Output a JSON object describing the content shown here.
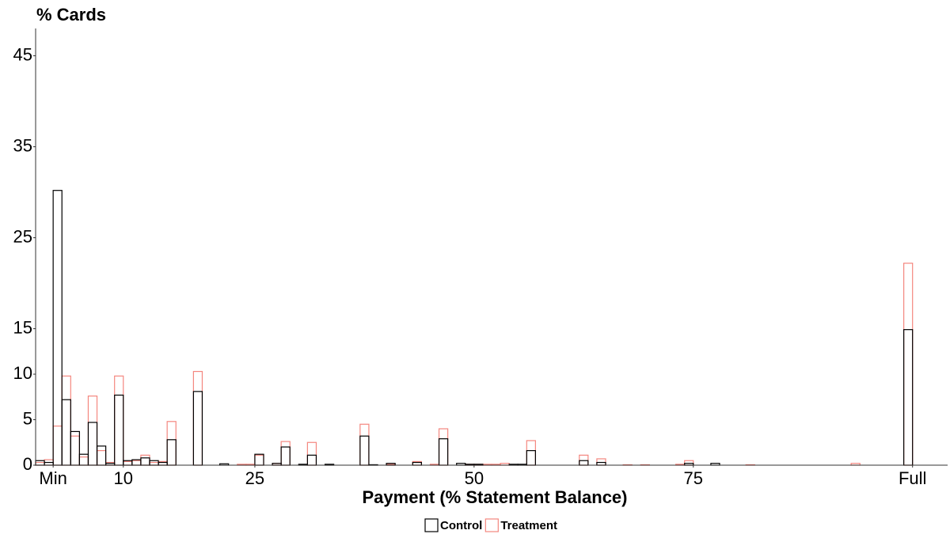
{
  "chart_data": {
    "type": "histogram",
    "y_label": "% Cards",
    "x_label": "Payment (% Statement Balance)",
    "bins": [
      0,
      1,
      2,
      3,
      4,
      5,
      6,
      7,
      8,
      9,
      10,
      11,
      12,
      13,
      14,
      15,
      16,
      17,
      18,
      19,
      20,
      21,
      22,
      23,
      24,
      25,
      26,
      27,
      28,
      29,
      30,
      31,
      32,
      33,
      34,
      35,
      36,
      37,
      38,
      39,
      40,
      41,
      42,
      43,
      44,
      45,
      46,
      47,
      48,
      49,
      50,
      51,
      52,
      53,
      54,
      55,
      56,
      57,
      58,
      59,
      60,
      61,
      62,
      63,
      64,
      65,
      66,
      67,
      68,
      69,
      70,
      71,
      72,
      73,
      74,
      75,
      76,
      77,
      78,
      79,
      80,
      81,
      82,
      83,
      84,
      85,
      86,
      87,
      88,
      89,
      90,
      91,
      92,
      93,
      94,
      95,
      96,
      97,
      98,
      99,
      100
    ],
    "series": [
      {
        "name": "Treatment",
        "color": "#f4877f",
        "values": [
          0.3,
          0.6,
          4.3,
          9.8,
          3.2,
          0.9,
          7.6,
          1.6,
          0.3,
          9.8,
          0.4,
          0.5,
          1.1,
          0.3,
          0.4,
          4.8,
          0,
          0,
          10.3,
          0,
          0,
          0,
          0,
          0.1,
          0.1,
          1.1,
          0,
          0.2,
          2.6,
          0,
          0,
          2.5,
          0,
          0,
          0,
          0,
          0,
          4.5,
          0,
          0,
          0.1,
          0,
          0,
          0.4,
          0,
          0.1,
          4.0,
          0,
          0,
          0.1,
          0.1,
          0.1,
          0.1,
          0.2,
          0,
          0,
          2.7,
          0,
          0,
          0,
          0,
          0,
          1.1,
          0,
          0.7,
          0,
          0,
          0.05,
          0,
          0.05,
          0,
          0,
          0,
          0.1,
          0.5,
          0,
          0,
          0,
          0,
          0,
          0,
          0.05,
          0,
          0,
          0,
          0,
          0,
          0,
          0,
          0,
          0,
          0,
          0,
          0.2,
          0,
          0,
          0,
          0,
          0,
          22.2
        ]
      },
      {
        "name": "Control",
        "color": "#000000",
        "values": [
          0.5,
          0.3,
          30.2,
          7.2,
          3.7,
          1.2,
          4.7,
          2.1,
          0.2,
          7.7,
          0.5,
          0.6,
          0.8,
          0.5,
          0.3,
          2.8,
          0,
          0,
          8.1,
          0,
          0,
          0.15,
          0,
          0,
          0,
          1.2,
          0,
          0.2,
          2.0,
          0,
          0.1,
          1.1,
          0,
          0.1,
          0,
          0,
          0,
          3.2,
          0.05,
          0,
          0.2,
          0,
          0,
          0.3,
          0,
          0,
          2.9,
          0,
          0.2,
          0.1,
          0.1,
          0,
          0,
          0,
          0.1,
          0.1,
          1.6,
          0,
          0,
          0,
          0,
          0,
          0.5,
          0,
          0.3,
          0,
          0,
          0,
          0,
          0,
          0,
          0,
          0,
          0,
          0.2,
          0,
          0,
          0.2,
          0,
          0,
          0,
          0,
          0,
          0,
          0,
          0,
          0,
          0,
          0,
          0,
          0,
          0,
          0,
          0,
          0,
          0,
          0,
          0,
          0,
          14.9
        ]
      }
    ],
    "legend_order": [
      "Control",
      "Treatment"
    ],
    "xlim": [
      0,
      104
    ],
    "xticks": [
      {
        "value": 2,
        "label": "Min"
      },
      10,
      25,
      50,
      75,
      {
        "value": 100,
        "label": "Full"
      }
    ],
    "ylim": [
      0,
      48
    ],
    "yticks": [
      0,
      5,
      10,
      15,
      25,
      35,
      45
    ],
    "grid": false,
    "legend": "bottom"
  }
}
